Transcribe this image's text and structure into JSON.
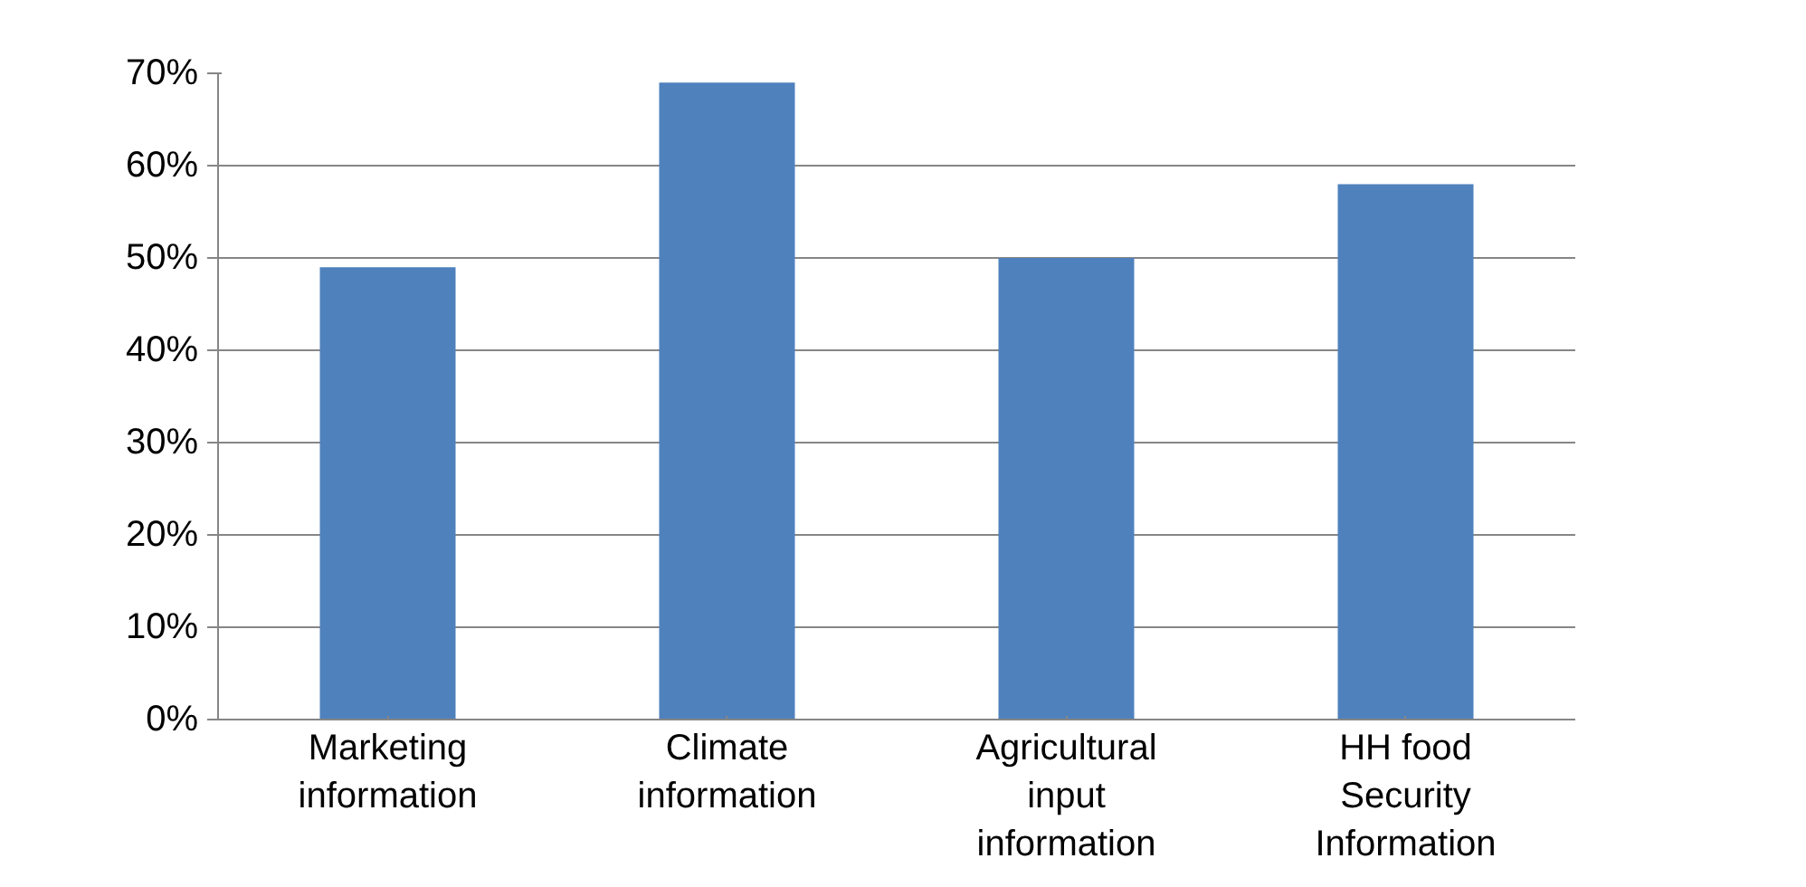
{
  "chart_data": {
    "type": "bar",
    "categories": [
      "Marketing information",
      "Climate information",
      "Agricultural input information",
      "HH food Security Information"
    ],
    "values": [
      49,
      69,
      50,
      58
    ],
    "color": "#4f81bd",
    "ylim": [
      0,
      70
    ],
    "yticks": [
      {
        "value": 0,
        "label": "0%"
      },
      {
        "value": 10,
        "label": "10%"
      },
      {
        "value": 20,
        "label": "20%"
      },
      {
        "value": 30,
        "label": "30%"
      },
      {
        "value": 40,
        "label": "40%"
      },
      {
        "value": 50,
        "label": "50%"
      },
      {
        "value": 60,
        "label": "60%"
      },
      {
        "value": 70,
        "label": "70%"
      }
    ],
    "grid": "y"
  }
}
